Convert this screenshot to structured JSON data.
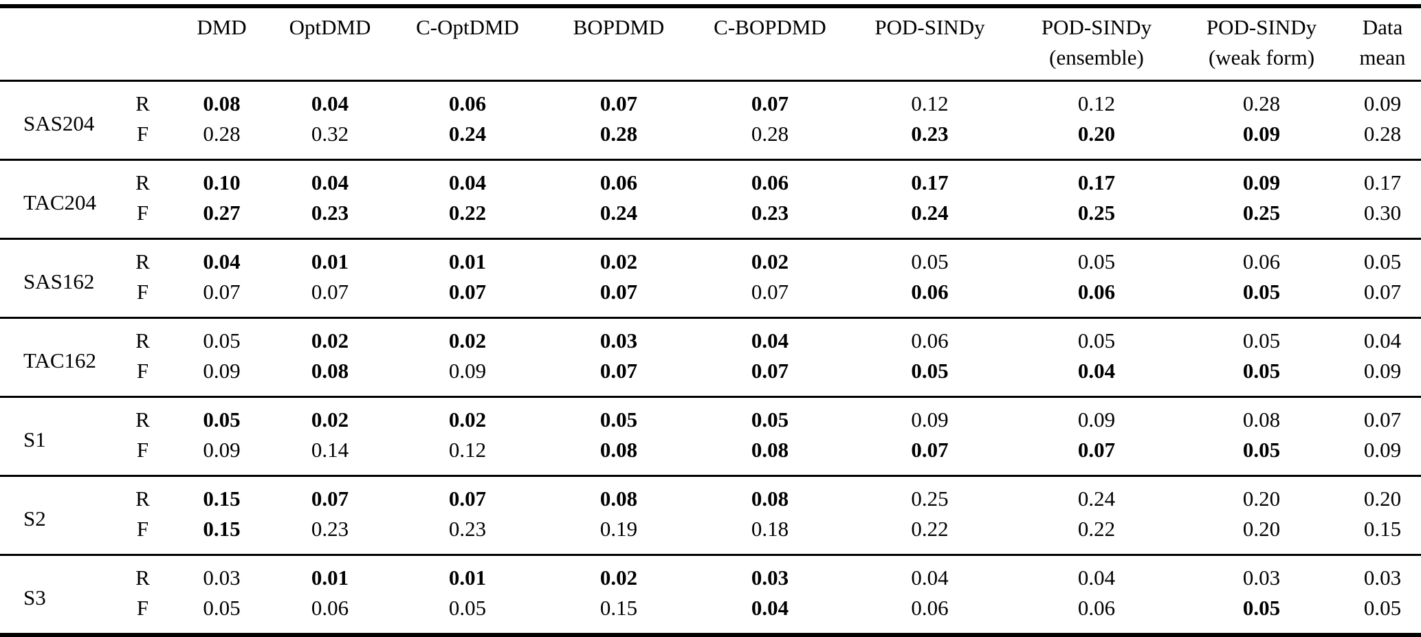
{
  "table": {
    "corner_label": "",
    "metric_header": "",
    "headers": [
      {
        "line1": "DMD",
        "line2": ""
      },
      {
        "line1": "OptDMD",
        "line2": ""
      },
      {
        "line1": "C-OptDMD",
        "line2": ""
      },
      {
        "line1": "BOPDMD",
        "line2": ""
      },
      {
        "line1": "C-BOPDMD",
        "line2": ""
      },
      {
        "line1": "POD-SINDy",
        "line2": ""
      },
      {
        "line1": "POD-SINDy",
        "line2": "(ensemble)"
      },
      {
        "line1": "POD-SINDy",
        "line2": "(weak form)"
      },
      {
        "line1": "Data",
        "line2": "mean"
      }
    ],
    "groups": [
      {
        "label": "SAS204",
        "rows": [
          {
            "metric": "R",
            "values": [
              "0.08",
              "0.04",
              "0.06",
              "0.07",
              "0.07",
              "0.12",
              "0.12",
              "0.28",
              "0.09"
            ],
            "bold": [
              true,
              true,
              true,
              true,
              true,
              false,
              false,
              false,
              false
            ]
          },
          {
            "metric": "F",
            "values": [
              "0.28",
              "0.32",
              "0.24",
              "0.28",
              "0.28",
              "0.23",
              "0.20",
              "0.09",
              "0.28"
            ],
            "bold": [
              false,
              false,
              true,
              true,
              false,
              true,
              true,
              true,
              false
            ]
          }
        ]
      },
      {
        "label": "TAC204",
        "rows": [
          {
            "metric": "R",
            "values": [
              "0.10",
              "0.04",
              "0.04",
              "0.06",
              "0.06",
              "0.17",
              "0.17",
              "0.09",
              "0.17"
            ],
            "bold": [
              true,
              true,
              true,
              true,
              true,
              true,
              true,
              true,
              false
            ]
          },
          {
            "metric": "F",
            "values": [
              "0.27",
              "0.23",
              "0.22",
              "0.24",
              "0.23",
              "0.24",
              "0.25",
              "0.25",
              "0.30"
            ],
            "bold": [
              true,
              true,
              true,
              true,
              true,
              true,
              true,
              true,
              false
            ]
          }
        ]
      },
      {
        "label": "SAS162",
        "rows": [
          {
            "metric": "R",
            "values": [
              "0.04",
              "0.01",
              "0.01",
              "0.02",
              "0.02",
              "0.05",
              "0.05",
              "0.06",
              "0.05"
            ],
            "bold": [
              true,
              true,
              true,
              true,
              true,
              false,
              false,
              false,
              false
            ]
          },
          {
            "metric": "F",
            "values": [
              "0.07",
              "0.07",
              "0.07",
              "0.07",
              "0.07",
              "0.06",
              "0.06",
              "0.05",
              "0.07"
            ],
            "bold": [
              false,
              false,
              true,
              true,
              false,
              true,
              true,
              true,
              false
            ]
          }
        ]
      },
      {
        "label": "TAC162",
        "rows": [
          {
            "metric": "R",
            "values": [
              "0.05",
              "0.02",
              "0.02",
              "0.03",
              "0.04",
              "0.06",
              "0.05",
              "0.05",
              "0.04"
            ],
            "bold": [
              false,
              true,
              true,
              true,
              true,
              false,
              false,
              false,
              false
            ]
          },
          {
            "metric": "F",
            "values": [
              "0.09",
              "0.08",
              "0.09",
              "0.07",
              "0.07",
              "0.05",
              "0.04",
              "0.05",
              "0.09"
            ],
            "bold": [
              false,
              true,
              false,
              true,
              true,
              true,
              true,
              true,
              false
            ]
          }
        ]
      },
      {
        "label": "S1",
        "rows": [
          {
            "metric": "R",
            "values": [
              "0.05",
              "0.02",
              "0.02",
              "0.05",
              "0.05",
              "0.09",
              "0.09",
              "0.08",
              "0.07"
            ],
            "bold": [
              true,
              true,
              true,
              true,
              true,
              false,
              false,
              false,
              false
            ]
          },
          {
            "metric": "F",
            "values": [
              "0.09",
              "0.14",
              "0.12",
              "0.08",
              "0.08",
              "0.07",
              "0.07",
              "0.05",
              "0.09"
            ],
            "bold": [
              false,
              false,
              false,
              true,
              true,
              true,
              true,
              true,
              false
            ]
          }
        ]
      },
      {
        "label": "S2",
        "rows": [
          {
            "metric": "R",
            "values": [
              "0.15",
              "0.07",
              "0.07",
              "0.08",
              "0.08",
              "0.25",
              "0.24",
              "0.20",
              "0.20"
            ],
            "bold": [
              true,
              true,
              true,
              true,
              true,
              false,
              false,
              false,
              false
            ]
          },
          {
            "metric": "F",
            "values": [
              "0.15",
              "0.23",
              "0.23",
              "0.19",
              "0.18",
              "0.22",
              "0.22",
              "0.20",
              "0.15"
            ],
            "bold": [
              true,
              false,
              false,
              false,
              false,
              false,
              false,
              false,
              false
            ]
          }
        ]
      },
      {
        "label": "S3",
        "rows": [
          {
            "metric": "R",
            "values": [
              "0.03",
              "0.01",
              "0.01",
              "0.02",
              "0.03",
              "0.04",
              "0.04",
              "0.03",
              "0.03"
            ],
            "bold": [
              false,
              true,
              true,
              true,
              true,
              false,
              false,
              false,
              false
            ]
          },
          {
            "metric": "F",
            "values": [
              "0.05",
              "0.06",
              "0.05",
              "0.15",
              "0.04",
              "0.06",
              "0.06",
              "0.05",
              "0.05"
            ],
            "bold": [
              false,
              false,
              false,
              false,
              true,
              false,
              false,
              true,
              false
            ]
          }
        ]
      }
    ],
    "colors": {
      "text": "#000000",
      "background": "#ffffff",
      "rule": "#000000"
    }
  }
}
